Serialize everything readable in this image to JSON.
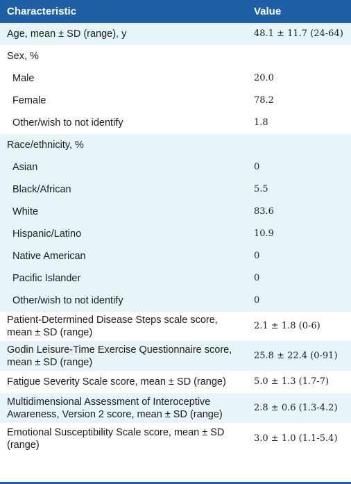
{
  "header": {
    "characteristic": "Characteristic",
    "value": "Value"
  },
  "rows": [
    {
      "label": "Age, mean ± SD (range), y",
      "value": "48.1 ± 11.7 (24-64)"
    },
    {
      "label": "Sex, %",
      "value": ""
    },
    {
      "label": "Male",
      "value": "20.0"
    },
    {
      "label": "Female",
      "value": "78.2"
    },
    {
      "label": "Other/wish to not identify",
      "value": "1.8"
    },
    {
      "label": "Race/ethnicity, %",
      "value": ""
    },
    {
      "label": "Asian",
      "value": "0"
    },
    {
      "label": "Black/African",
      "value": "5.5"
    },
    {
      "label": "White",
      "value": "83.6"
    },
    {
      "label": "Hispanic/Latino",
      "value": "10.9"
    },
    {
      "label": "Native American",
      "value": "0"
    },
    {
      "label": "Pacific Islander",
      "value": "0"
    },
    {
      "label": "Other/wish to not identify",
      "value": "0"
    },
    {
      "label": "Patient-Determined Disease Steps scale score, mean ± SD (range)",
      "value": "2.1 ± 1.8 (0-6)"
    },
    {
      "label": "Godin Leisure-Time Exercise Questionnaire score, mean ± SD (range)",
      "value": "25.8 ± 22.4 (0-91)"
    },
    {
      "label": "Fatigue Severity Scale score, mean ± SD (range)",
      "value": "5.0 ± 1.3 (1.7-7)"
    },
    {
      "label": "Multidimensional Assessment of Interoceptive Awareness, Version 2 score, mean ± SD (range)",
      "value": "2.8 ± 0.6 (1.3-4.2)"
    },
    {
      "label": "Emotional Susceptibility Scale score, mean ± SD (range)",
      "value": "3.0 ± 1.0 (1.1-5.4)"
    }
  ],
  "colors": {
    "header_bg": "#1f5fa6",
    "tint_bg": "#e8f5f8"
  }
}
